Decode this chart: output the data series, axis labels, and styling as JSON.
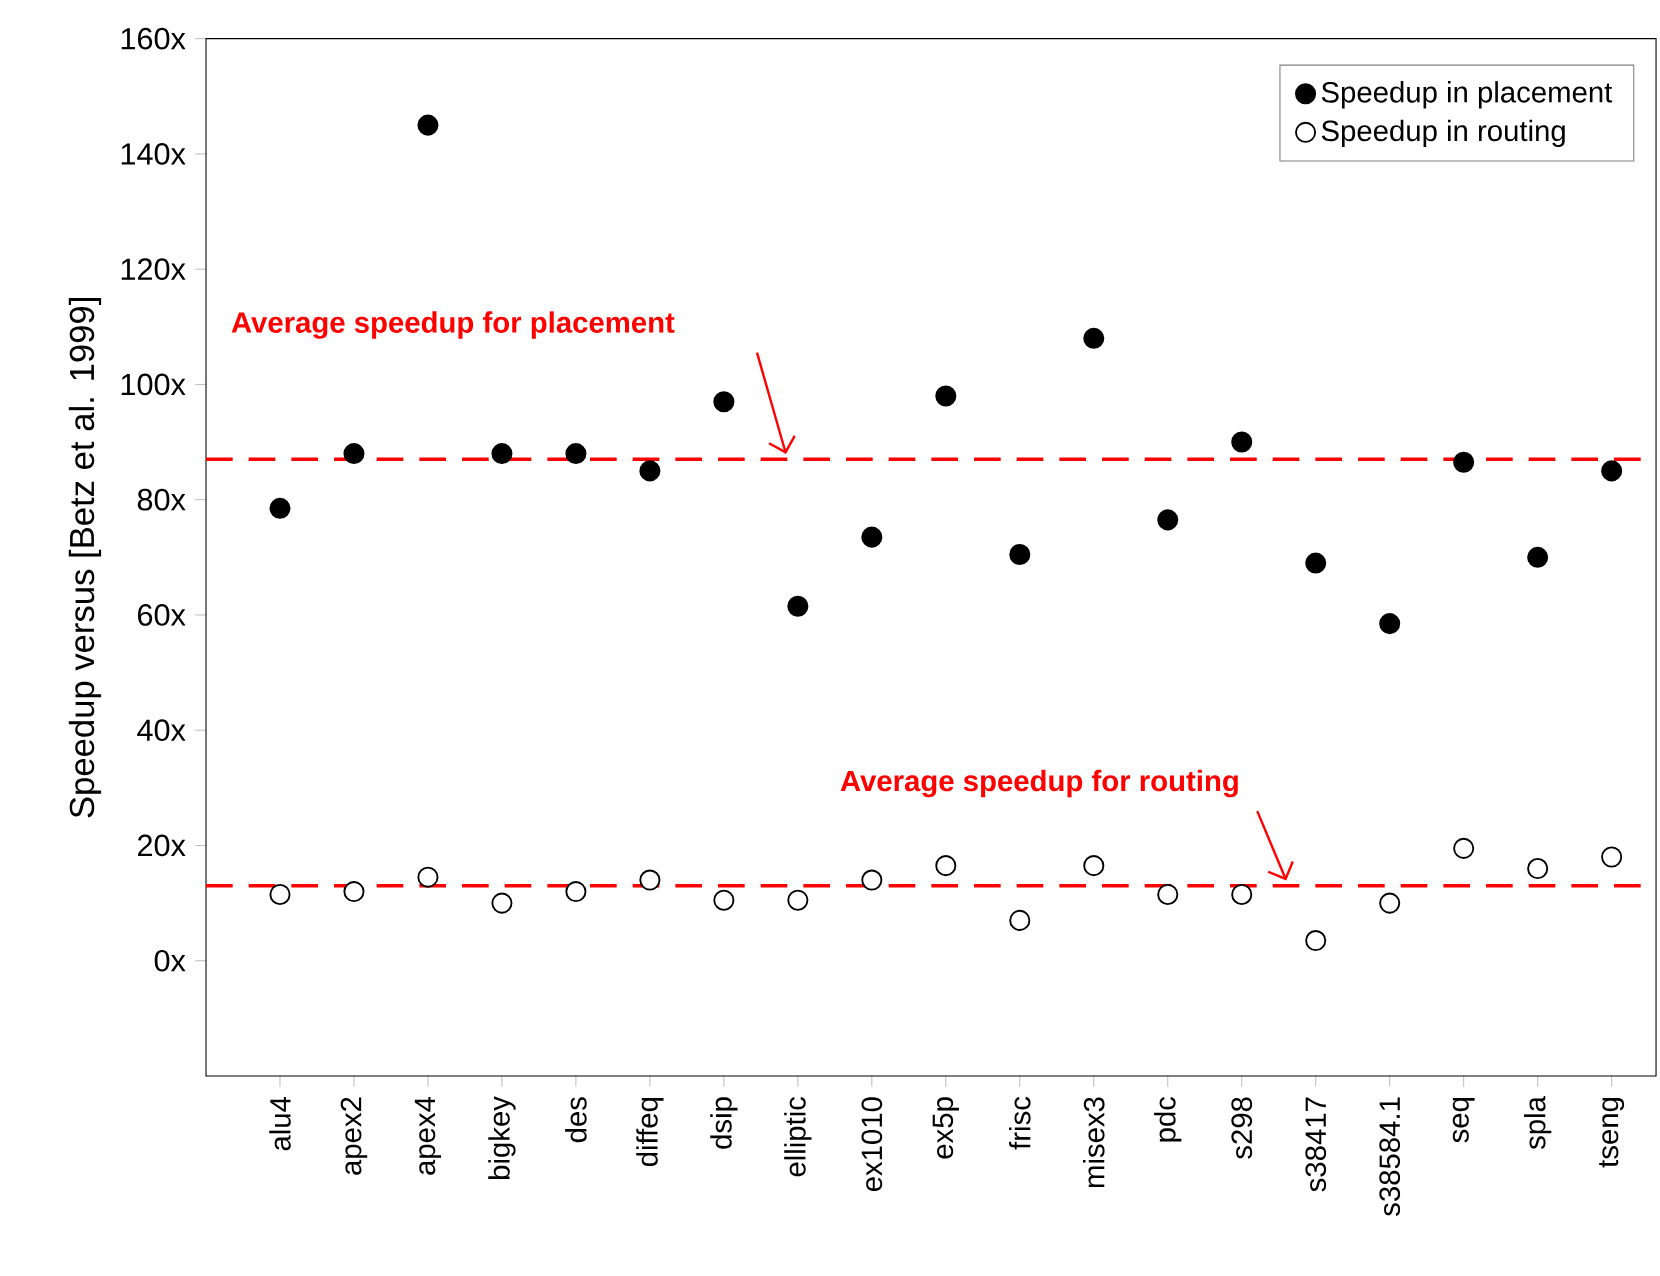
{
  "chart_data": {
    "type": "scatter",
    "ylabel": "Speedup versus [Betz et al. 1999]",
    "categories": [
      "alu4",
      "apex2",
      "apex4",
      "bigkey",
      "des",
      "diffeq",
      "dsip",
      "elliptic",
      "ex1010",
      "ex5p",
      "frisc",
      "misex3",
      "pdc",
      "s298",
      "s38417",
      "s38584.1",
      "seq",
      "spla",
      "tseng"
    ],
    "series": [
      {
        "name": "Speedup in placement",
        "color": "#000000",
        "values": [
          78.5,
          88,
          145,
          88,
          88,
          85,
          97,
          61.5,
          73.5,
          98,
          70.5,
          108,
          76.5,
          90,
          69,
          58.5,
          86.5,
          70,
          85
        ]
      },
      {
        "name": "Speedup in routing",
        "color": "#000000",
        "values": [
          11.5,
          12,
          14.5,
          10,
          12,
          14,
          10.5,
          10.5,
          14,
          16.5,
          7,
          16.5,
          11.5,
          11.5,
          3.5,
          10,
          19.5,
          16,
          18
        ]
      }
    ],
    "ylim": [
      -20,
      160
    ],
    "yticks": [
      {
        "value": 0,
        "label": "0x"
      },
      {
        "value": 20,
        "label": "20x"
      },
      {
        "value": 40,
        "label": "40x"
      },
      {
        "value": 60,
        "label": "60x"
      },
      {
        "value": 80,
        "label": "80x"
      },
      {
        "value": 100,
        "label": "100x"
      },
      {
        "value": 120,
        "label": "120x"
      },
      {
        "value": 140,
        "label": "140x"
      },
      {
        "value": 160,
        "label": "160x"
      }
    ],
    "ref_lines": [
      {
        "axis": "y",
        "value": 87,
        "label": "Average speedup for placement",
        "color": "#ff0000",
        "line_style": "dashed"
      },
      {
        "axis": "y",
        "value": 13,
        "label": "Average speedup for routing",
        "color": "#ff0000",
        "line_style": "dashed"
      }
    ],
    "marker": "circle",
    "legend": "top right",
    "grid": false
  }
}
